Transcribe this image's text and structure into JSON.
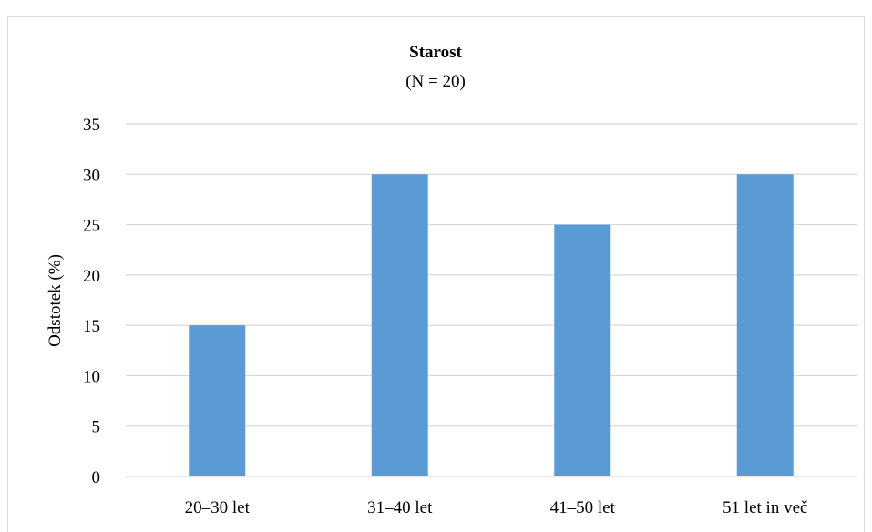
{
  "chart_data": {
    "type": "bar",
    "title": "Starost",
    "subtitle": "(N = 20)",
    "xlabel": "",
    "ylabel": "Odstotek (%)",
    "categories": [
      "20–30 let",
      "31–40 let",
      "41–50 let",
      "51 let in več"
    ],
    "values": [
      15,
      30,
      25,
      30
    ],
    "ylim": [
      0,
      35
    ],
    "yticks": [
      0,
      5,
      10,
      15,
      20,
      25,
      30,
      35
    ],
    "grid": true,
    "legend": "none",
    "colors": {
      "bar": "#5b9bd5",
      "grid": "#d9d9d9",
      "text": "#000000"
    }
  }
}
